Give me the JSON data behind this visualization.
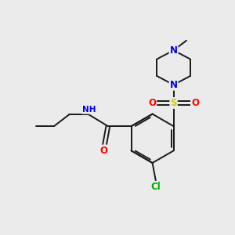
{
  "background_color": "#ebebeb",
  "figsize": [
    3.0,
    3.0
  ],
  "dpi": 100,
  "colors": {
    "C": "#1a1a1a",
    "N": "#0000ee",
    "O": "#ff0000",
    "S": "#cccc00",
    "Cl": "#00aa00",
    "bond": "#1a1a1a"
  },
  "bond_lw": 1.4,
  "font_size": 7.5
}
